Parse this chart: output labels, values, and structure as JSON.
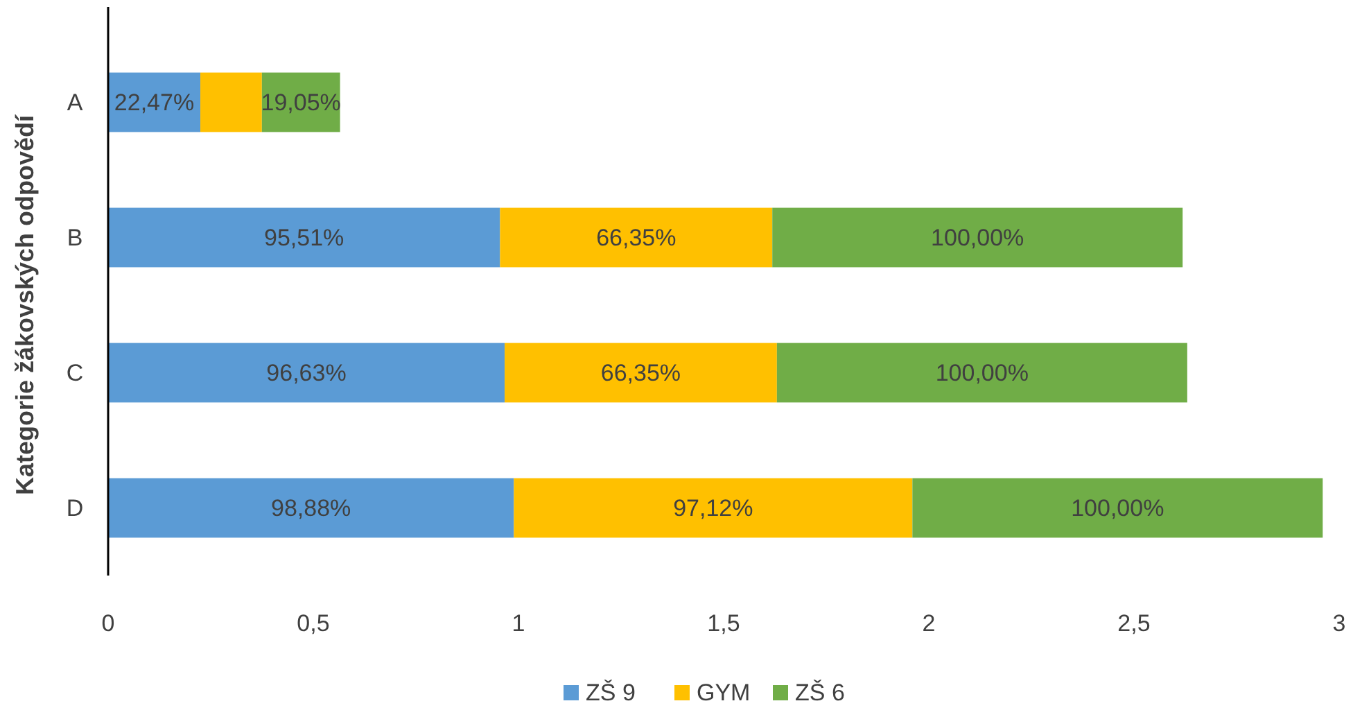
{
  "chart_data": {
    "type": "bar",
    "orientation": "horizontal",
    "stacked": true,
    "ylabel": "Kategorie žákovských odpovědí",
    "categories": [
      "A",
      "B",
      "C",
      "D"
    ],
    "xlim": [
      0,
      3
    ],
    "xticks": [
      0,
      {
        "value": 0.5,
        "label": "0,5"
      },
      1,
      {
        "value": 1.5,
        "label": "1,5"
      },
      2,
      {
        "value": 2.5,
        "label": "2,5"
      },
      3
    ],
    "grid": false,
    "legend": "bottom",
    "series": [
      {
        "name": "ZŠ 9",
        "color": "#5b9bd5",
        "values": [
          0.2247,
          0.9551,
          0.9663,
          0.9888
        ],
        "value_labels": [
          "22,47%",
          "95,51%",
          "96,63%",
          "98,88%"
        ]
      },
      {
        "name": "GYM",
        "color": "#ffc000",
        "values": [
          0.15,
          0.6635,
          0.6635,
          0.9712
        ],
        "value_labels": [
          null,
          "66,35%",
          "66,35%",
          "97,12%"
        ]
      },
      {
        "name": "ZŠ 6",
        "color": "#70ad47",
        "values": [
          0.1905,
          1,
          1,
          1
        ],
        "value_labels": [
          "19,05%",
          "100,00%",
          "100,00%",
          "100,00%"
        ]
      }
    ]
  }
}
